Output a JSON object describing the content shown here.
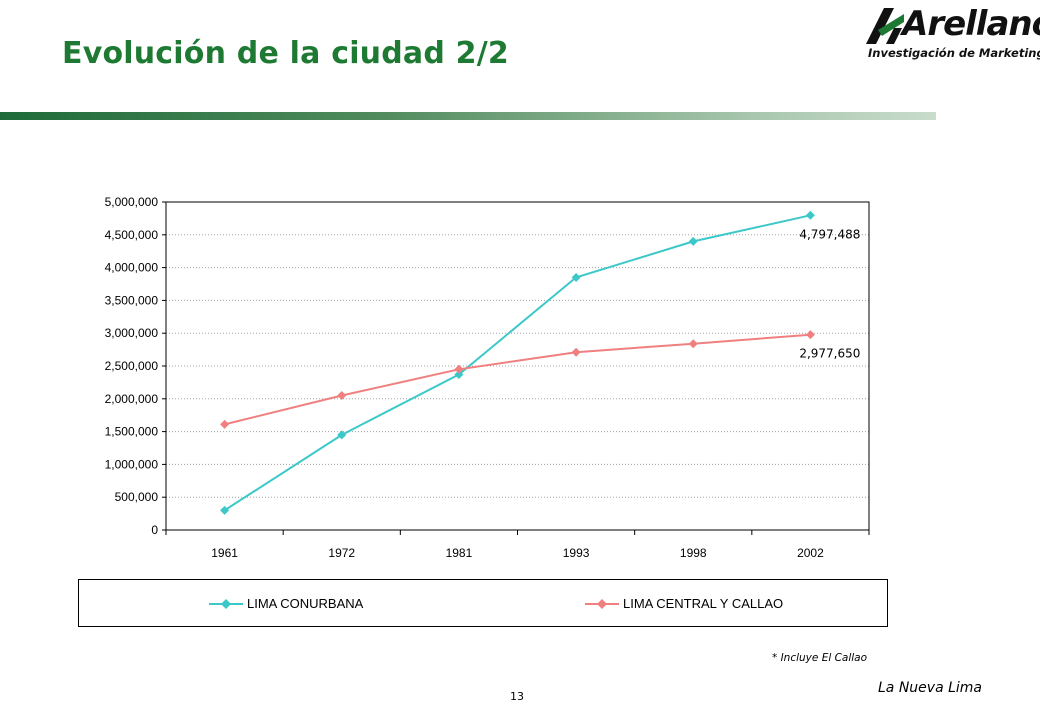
{
  "page": {
    "title": "Evolución de la ciudad 2/2",
    "footnote": "* Incluye El Callao",
    "page_number": "13",
    "footer_label": "La Nueva Lima"
  },
  "logo": {
    "word": "Arellano",
    "tagline": "Investigación de Marketing"
  },
  "colors": {
    "title": "#1e7a33",
    "series_conurbana": "#3cc8c8",
    "series_central": "#f08080",
    "grid": "#a0a0a0"
  },
  "chart_data": {
    "type": "line",
    "title": "",
    "xlabel": "",
    "ylabel": "",
    "categories": [
      "1961",
      "1972",
      "1981",
      "1993",
      "1998",
      "2002"
    ],
    "ylim": [
      0,
      5000000
    ],
    "ytick_labels": [
      "0",
      "500,000",
      "1,000,000",
      "1,500,000",
      "2,000,000",
      "2,500,000",
      "3,000,000",
      "3,500,000",
      "4,000,000",
      "4,500,000",
      "5,000,000"
    ],
    "grid": "horizontal dotted",
    "legend_position": "bottom",
    "series": [
      {
        "name": "LIMA CONURBANA",
        "color": "#3cc8c8",
        "values": [
          300000,
          1450000,
          2370000,
          3850000,
          4400000,
          4797488
        ],
        "data_label": "4,797,488"
      },
      {
        "name": "LIMA CENTRAL Y CALLAO",
        "color": "#f08080",
        "values": [
          1610000,
          2050000,
          2450000,
          2710000,
          2840000,
          2977650
        ],
        "data_label": "2,977,650"
      }
    ]
  }
}
